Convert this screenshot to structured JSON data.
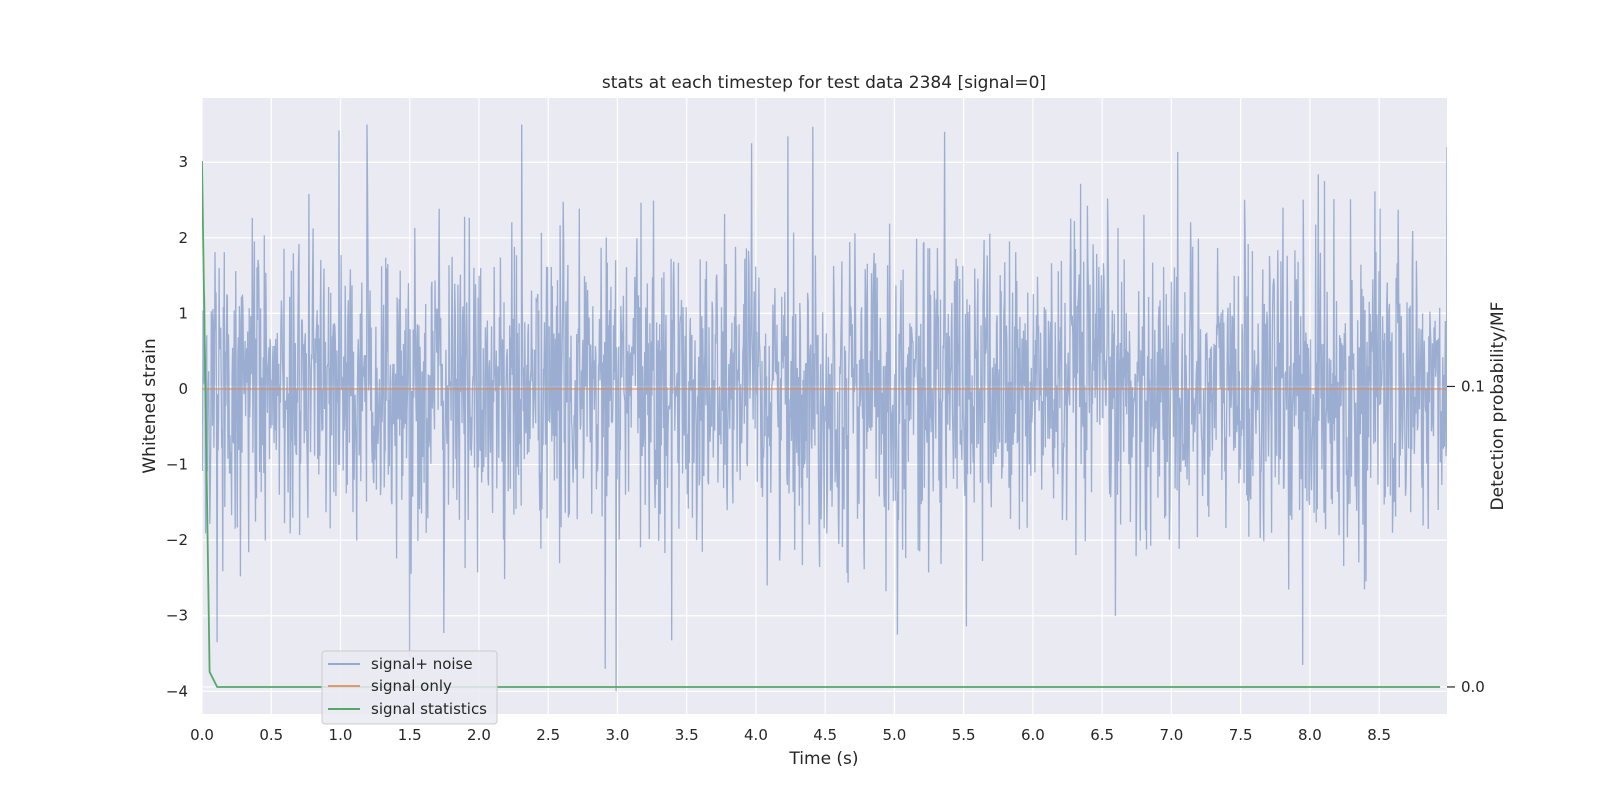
{
  "chart_data": {
    "type": "line",
    "title": "stats at each timestep for test data 2384 [signal=0]",
    "xlabel": "Time (s)",
    "ylabel": "Whitened strain",
    "y2label": "Detection probability/MF",
    "xlim": [
      0.0,
      8.99
    ],
    "ylim": [
      -4.3,
      3.85
    ],
    "y2lim": [
      -0.009,
      0.196
    ],
    "xticks": [
      0.0,
      0.5,
      1.0,
      1.5,
      2.0,
      2.5,
      3.0,
      3.5,
      4.0,
      4.5,
      5.0,
      5.5,
      6.0,
      6.5,
      7.0,
      7.5,
      8.0,
      8.5
    ],
    "xtick_labels": [
      "0.0",
      "0.5",
      "1.0",
      "1.5",
      "2.0",
      "2.5",
      "3.0",
      "3.5",
      "4.0",
      "4.5",
      "5.0",
      "5.5",
      "6.0",
      "6.5",
      "7.0",
      "7.5",
      "8.0",
      "8.5"
    ],
    "yticks": [
      3,
      2,
      1,
      0,
      -1,
      -2,
      -3,
      -4
    ],
    "ytick_labels": [
      "3",
      "2",
      "1",
      "0",
      "−1",
      "−2",
      "−3",
      "−4"
    ],
    "y2ticks": [
      0.1,
      0.0
    ],
    "y2tick_labels": [
      "0.1",
      "0.0"
    ],
    "grid": true,
    "legend_position": "lower-left",
    "series": [
      {
        "name": "signal+ noise",
        "axis": "left",
        "color": "#4c72b0",
        "opacity": 0.5,
        "generated_noise": {
          "samples": 2400,
          "sigma": 1.0,
          "min": -4.0,
          "max": 3.5,
          "seed": 2384
        },
        "extremes": [
          {
            "x": 0.99,
            "y": 3.42
          },
          {
            "x": 4.41,
            "y": 3.47
          },
          {
            "x": 8.99,
            "y": 3.2
          },
          {
            "x": 2.99,
            "y": -4.0
          },
          {
            "x": 2.91,
            "y": -3.7
          },
          {
            "x": 7.95,
            "y": -3.65
          },
          {
            "x": 0.11,
            "y": -3.35
          },
          {
            "x": 1.5,
            "y": -3.55
          },
          {
            "x": 5.02,
            "y": -3.25
          }
        ]
      },
      {
        "name": "signal only",
        "axis": "left",
        "color": "#dd8452",
        "x": [
          0.0,
          8.99
        ],
        "y": [
          0.0,
          0.0
        ]
      },
      {
        "name": "signal statistics",
        "axis": "right",
        "color": "#55a868",
        "x": [
          0.0,
          0.055,
          0.11,
          0.5,
          1.0,
          2.0,
          3.0,
          4.0,
          5.0,
          6.0,
          7.0,
          8.0,
          8.94
        ],
        "y": [
          0.175,
          0.005,
          0.0,
          0.0,
          0.0,
          0.0,
          0.0,
          0.0,
          0.0,
          0.0,
          0.0,
          0.0,
          0.0
        ]
      }
    ]
  }
}
